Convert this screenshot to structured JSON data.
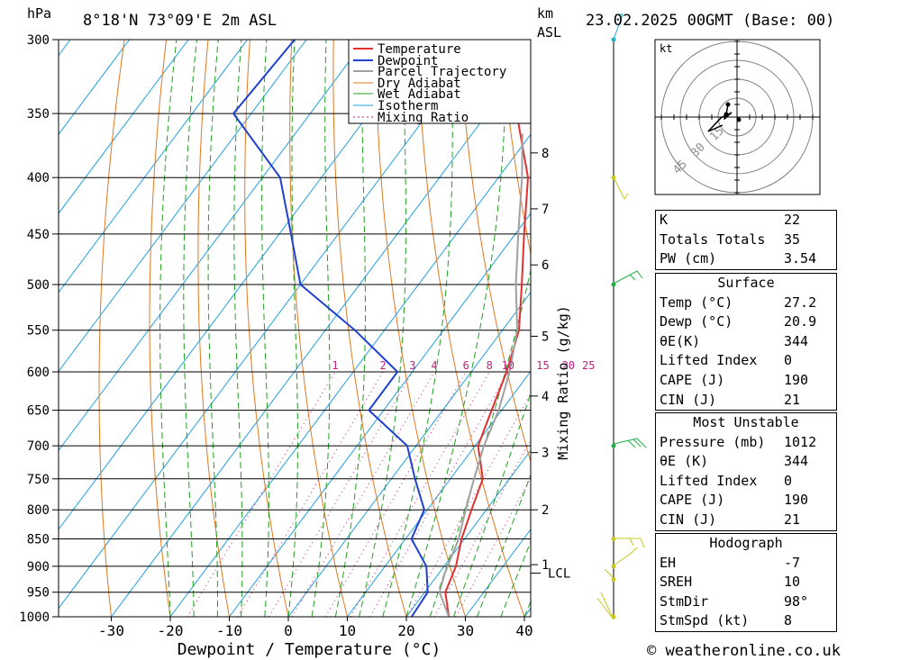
{
  "header": {
    "hpa_unit": "hPa",
    "location": "8°18'N  73°09'E  2m  ASL",
    "km_unit": "km",
    "asl_unit": "ASL",
    "datetime": "23.02.2025  00GMT  (Base: 00)"
  },
  "hodograph": {
    "unit": "kt",
    "ring_labels": [
      "15",
      "30",
      "45"
    ]
  },
  "indices": [
    {
      "label": "K",
      "value": "22"
    },
    {
      "label": "Totals Totals",
      "value": "35"
    },
    {
      "label": "PW (cm)",
      "value": "3.54"
    }
  ],
  "surface": {
    "title": "Surface",
    "rows": [
      {
        "label": "Temp (°C)",
        "value": "27.2"
      },
      {
        "label": "Dewp (°C)",
        "value": "20.9"
      },
      {
        "label": "θE(K)",
        "value": "344"
      },
      {
        "label": "Lifted Index",
        "value": "0"
      },
      {
        "label": "CAPE (J)",
        "value": "190"
      },
      {
        "label": "CIN (J)",
        "value": "21"
      }
    ]
  },
  "most_unstable": {
    "title": "Most Unstable",
    "rows": [
      {
        "label": "Pressure (mb)",
        "value": "1012"
      },
      {
        "label": "θE (K)",
        "value": "344"
      },
      {
        "label": "Lifted Index",
        "value": "0"
      },
      {
        "label": "CAPE (J)",
        "value": "190"
      },
      {
        "label": "CIN (J)",
        "value": "21"
      }
    ]
  },
  "hodo_table": {
    "title": "Hodograph",
    "rows": [
      {
        "label": "EH",
        "value": "-7"
      },
      {
        "label": "SREH",
        "value": "10"
      },
      {
        "label": "StmDir",
        "value": "98°"
      },
      {
        "label": "StmSpd (kt)",
        "value": "8"
      }
    ]
  },
  "footer": {
    "credit": "© weatheronline.co.uk"
  },
  "colors": {
    "temperature": "#e03030",
    "dewpoint": "#2040d0",
    "parcel": "#a0a0a0",
    "dry_adiabat": "#e07820",
    "wet_adiabat": "#20a020",
    "isotherm": "#20a0e0",
    "mixing_ratio": "#c02080"
  },
  "chart_data": {
    "type": "skew-t",
    "xlabel": "Dewpoint / Temperature (°C)",
    "ylabel_left": "hPa",
    "ylabel_right": "Mixing Ratio (g/kg)",
    "x_ticks": [
      -30,
      -20,
      -10,
      0,
      10,
      20,
      30,
      40
    ],
    "pressure_levels": [
      300,
      350,
      400,
      450,
      500,
      550,
      600,
      650,
      700,
      750,
      800,
      850,
      900,
      950,
      1000
    ],
    "height_km_ticks": [
      {
        "label": "8",
        "p": 380
      },
      {
        "label": "7",
        "p": 427
      },
      {
        "label": "6",
        "p": 480
      },
      {
        "label": "5",
        "p": 557
      },
      {
        "label": "4",
        "p": 631
      },
      {
        "label": "3",
        "p": 710
      },
      {
        "label": "2",
        "p": 800
      },
      {
        "label": "1",
        "p": 897
      }
    ],
    "lcl": {
      "label": "LCL",
      "p": 913
    },
    "mixing_ratio_labels": [
      "1",
      "2",
      "3",
      "4",
      "6",
      "8",
      "10",
      "15",
      "20",
      "25"
    ],
    "legend": [
      "Temperature",
      "Dewpoint",
      "Parcel Trajectory",
      "Dry Adiabat",
      "Wet Adiabat",
      "Isotherm",
      "Mixing Ratio"
    ],
    "series": [
      {
        "name": "Temperature",
        "points": [
          [
            1000,
            27.2
          ],
          [
            950,
            23.5
          ],
          [
            900,
            22.0
          ],
          [
            850,
            19.5
          ],
          [
            800,
            17.5
          ],
          [
            750,
            15.5
          ],
          [
            700,
            10.5
          ],
          [
            650,
            8.3
          ],
          [
            600,
            6.0
          ],
          [
            550,
            2.8
          ],
          [
            500,
            -2.5
          ],
          [
            450,
            -8.5
          ],
          [
            400,
            -15.0
          ],
          [
            350,
            -25.0
          ],
          [
            300,
            -36.0
          ]
        ]
      },
      {
        "name": "Dewpoint",
        "points": [
          [
            1000,
            20.9
          ],
          [
            950,
            20.5
          ],
          [
            900,
            17.0
          ],
          [
            850,
            11.0
          ],
          [
            800,
            9.5
          ],
          [
            750,
            4.0
          ],
          [
            700,
            -1.5
          ],
          [
            650,
            -12.5
          ],
          [
            600,
            -12.5
          ],
          [
            550,
            -25.0
          ],
          [
            500,
            -40.0
          ],
          [
            450,
            -48.0
          ],
          [
            400,
            -57.0
          ],
          [
            350,
            -73.0
          ],
          [
            300,
            -72.0
          ]
        ]
      },
      {
        "name": "Parcel Trajectory",
        "points": [
          [
            1000,
            27.2
          ],
          [
            950,
            22.5
          ],
          [
            913,
            21.0
          ],
          [
            850,
            19.0
          ],
          [
            800,
            16.5
          ],
          [
            750,
            14.0
          ],
          [
            700,
            11.5
          ],
          [
            650,
            9.5
          ],
          [
            600,
            6.5
          ],
          [
            550,
            2.5
          ],
          [
            500,
            -3.5
          ],
          [
            450,
            -9.5
          ],
          [
            400,
            -16.0
          ],
          [
            365,
            -21.5
          ]
        ]
      }
    ]
  }
}
